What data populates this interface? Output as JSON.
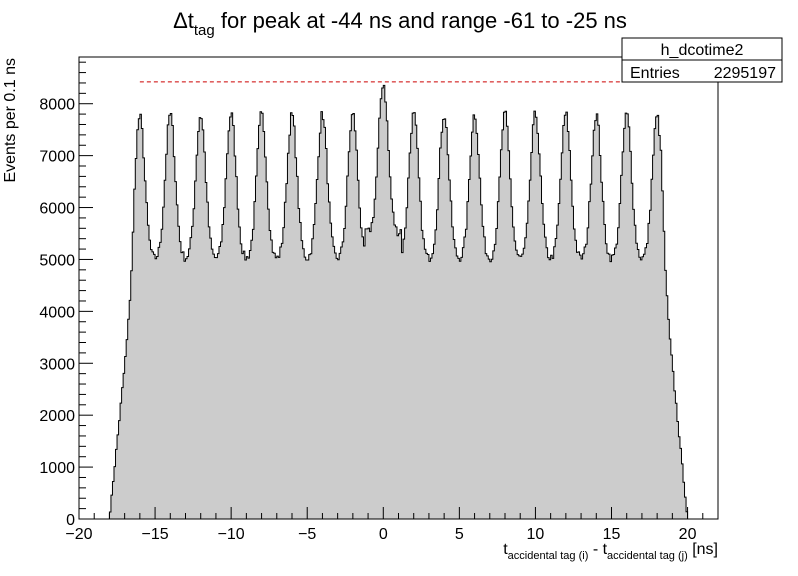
{
  "chart_data": {
    "type": "histogram",
    "title_main": "Δt",
    "title_sub": "tag",
    "title_rest": " for peak at -44 ns and range -61 to -25 ns",
    "xlabel_t": "t",
    "xlabel_sub1": "accidental tag (i)",
    "xlabel_mid": " - t",
    "xlabel_sub2": "accidental tag (j)",
    "xlabel_unit": " [ns]",
    "ylabel": "Events per 0.1 ns",
    "xlim": [
      -20,
      22
    ],
    "ylim": [
      0,
      8900
    ],
    "x_ticks": [
      -20,
      -15,
      -10,
      -5,
      0,
      5,
      10,
      15,
      20
    ],
    "x_tick_labels": [
      "−20",
      "−15",
      "−10",
      "−5",
      "0",
      "5",
      "10",
      "15",
      "20"
    ],
    "y_ticks": [
      0,
      1000,
      2000,
      3000,
      4000,
      5000,
      6000,
      7000,
      8000
    ],
    "y_tick_labels": [
      "0",
      "1000",
      "2000",
      "3000",
      "4000",
      "5000",
      "6000",
      "7000",
      "8000"
    ],
    "bin_width": 0.1,
    "range": [
      -18,
      20
    ],
    "peak_spacing": 2.0,
    "peak_centers": [
      -16,
      -14,
      -12,
      -10,
      -8,
      -6,
      -4,
      -2,
      0,
      2,
      4,
      6,
      8,
      10,
      12,
      14,
      16,
      18
    ],
    "peak_heights": [
      7750,
      7800,
      7780,
      7800,
      7800,
      7780,
      7800,
      7800,
      8400,
      7800,
      7800,
      7800,
      7800,
      7800,
      7800,
      7800,
      7800,
      7750
    ],
    "trough_level": 5000,
    "trough_level_near_zero": 5500,
    "rise_range": [
      -18,
      -16.3
    ],
    "fall_range": [
      18.3,
      20
    ],
    "reference_line": {
      "y": 8420,
      "x_from": -16,
      "x_to": 20.5,
      "color": "#cc0000"
    },
    "fill_color": "#cccccc",
    "line_color": "#000000",
    "stats": {
      "name": "h_dcotime2",
      "entries_label": "Entries",
      "entries_value": "2295197"
    }
  }
}
